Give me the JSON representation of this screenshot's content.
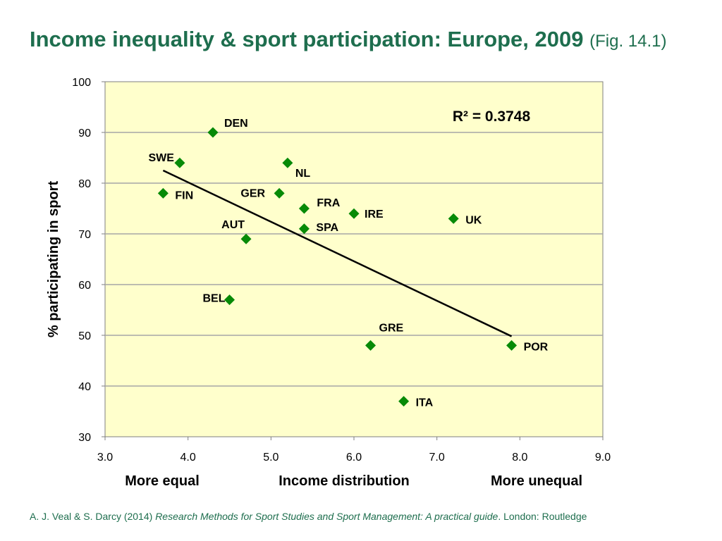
{
  "slide": {
    "title": "Income inequality & sport participation: Europe, 2009",
    "fig": "(Fig. 14.1)"
  },
  "footer": {
    "authors": "A. J. Veal & S. Darcy (2014)",
    "book": "Research Methods for Sport Studies and Sport Management: A practical guide",
    "publisher": ". London: Routledge"
  },
  "colors": {
    "title": "#1e6e4e",
    "plot_bg": "#ffffcc",
    "marker": "#078a07",
    "grid": "#a6a6a6",
    "trend": "#000000"
  },
  "chart_data": {
    "type": "scatter",
    "xlabel": "Income distribution",
    "xlabel_left": "More equal",
    "xlabel_right": "More unequal",
    "ylabel": "% participating in sport",
    "xlim": [
      3.0,
      9.0
    ],
    "ylim": [
      30,
      100
    ],
    "xticks": [
      "3.0",
      "4.0",
      "5.0",
      "6.0",
      "7.0",
      "8.0",
      "9.0"
    ],
    "yticks": [
      "30",
      "40",
      "50",
      "60",
      "70",
      "80",
      "90",
      "100"
    ],
    "grid": "horizontal",
    "annotation": "R² = 0.3748",
    "points": [
      {
        "label": "DEN",
        "x": 4.3,
        "y": 90
      },
      {
        "label": "SWE",
        "x": 3.9,
        "y": 84
      },
      {
        "label": "NL",
        "x": 5.2,
        "y": 84
      },
      {
        "label": "FIN",
        "x": 3.7,
        "y": 78
      },
      {
        "label": "GER",
        "x": 5.1,
        "y": 78
      },
      {
        "label": "FRA",
        "x": 5.4,
        "y": 75
      },
      {
        "label": "IRE",
        "x": 6.0,
        "y": 74
      },
      {
        "label": "UK",
        "x": 7.2,
        "y": 73
      },
      {
        "label": "SPA",
        "x": 5.4,
        "y": 71
      },
      {
        "label": "AUT",
        "x": 4.7,
        "y": 69
      },
      {
        "label": "BEL",
        "x": 4.5,
        "y": 57
      },
      {
        "label": "GRE",
        "x": 6.2,
        "y": 48
      },
      {
        "label": "POR",
        "x": 7.9,
        "y": 48
      },
      {
        "label": "ITA",
        "x": 6.6,
        "y": 37
      }
    ],
    "trendline": {
      "x": [
        3.7,
        7.9
      ],
      "y": [
        82.5,
        49.8
      ]
    }
  }
}
